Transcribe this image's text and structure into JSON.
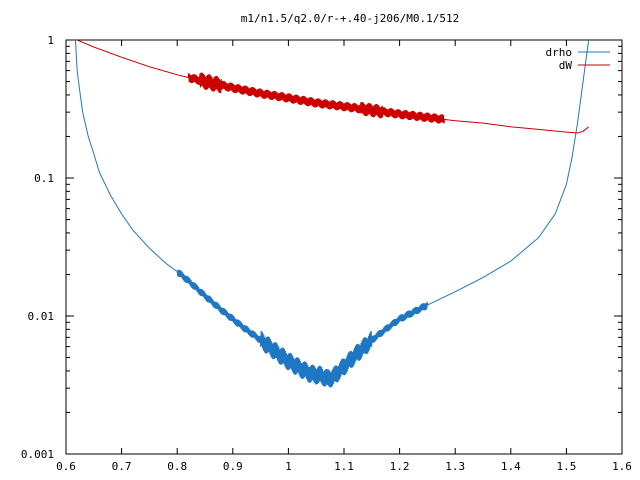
{
  "chart_data": {
    "type": "line",
    "title": "m1/n1.5/q2.0/r-+.40-j206/M0.1/512",
    "xlabel": "",
    "ylabel": "",
    "xlim": [
      0.6,
      1.6
    ],
    "ylim": [
      0.001,
      1
    ],
    "y_scale": "log",
    "grid": false,
    "legend_position": "top-right",
    "x_ticks": [
      0.6,
      0.7,
      0.8,
      0.9,
      1.0,
      1.1,
      1.2,
      1.3,
      1.4,
      1.5,
      1.6
    ],
    "x_tick_labels": [
      "0.6",
      "0.7",
      "0.8",
      "0.9",
      "1",
      "1.1",
      "1.2",
      "1.3",
      "1.4",
      "1.5",
      "1.6"
    ],
    "y_ticks": [
      1,
      0.1,
      0.01,
      0.001
    ],
    "y_tick_labels": [
      "1",
      "0.1",
      "0.01",
      "0.001"
    ],
    "series": [
      {
        "name": "drho",
        "color": "#1f77c4",
        "x": [
          0.617,
          0.62,
          0.625,
          0.63,
          0.64,
          0.65,
          0.66,
          0.68,
          0.7,
          0.72,
          0.75,
          0.78,
          0.8,
          0.82,
          0.85,
          0.88,
          0.9,
          0.92,
          0.95,
          0.98,
          1.0,
          1.02,
          1.04,
          1.06,
          1.07,
          1.08,
          1.1,
          1.12,
          1.15,
          1.18,
          1.2,
          1.25,
          1.3,
          1.35,
          1.4,
          1.45,
          1.48,
          1.5,
          1.51,
          1.52,
          1.53,
          1.54
        ],
        "y": [
          1.0,
          0.6,
          0.42,
          0.3,
          0.2,
          0.15,
          0.11,
          0.075,
          0.055,
          0.042,
          0.031,
          0.024,
          0.021,
          0.018,
          0.014,
          0.011,
          0.0095,
          0.0082,
          0.0067,
          0.0054,
          0.0047,
          0.0042,
          0.0038,
          0.0037,
          0.0035,
          0.0036,
          0.0043,
          0.0052,
          0.0067,
          0.0083,
          0.0095,
          0.012,
          0.015,
          0.019,
          0.025,
          0.037,
          0.055,
          0.09,
          0.14,
          0.25,
          0.5,
          1.0
        ]
      },
      {
        "name": "dW",
        "color": "#cc0000",
        "x": [
          0.62,
          0.65,
          0.7,
          0.75,
          0.8,
          0.85,
          0.9,
          0.95,
          1.0,
          1.05,
          1.1,
          1.15,
          1.2,
          1.25,
          1.3,
          1.35,
          1.4,
          1.45,
          1.5,
          1.52,
          1.53,
          1.54
        ],
        "y": [
          1.0,
          0.89,
          0.75,
          0.64,
          0.56,
          0.5,
          0.45,
          0.41,
          0.38,
          0.35,
          0.33,
          0.31,
          0.29,
          0.275,
          0.26,
          0.25,
          0.235,
          0.225,
          0.215,
          0.212,
          0.218,
          0.235
        ]
      }
    ]
  }
}
